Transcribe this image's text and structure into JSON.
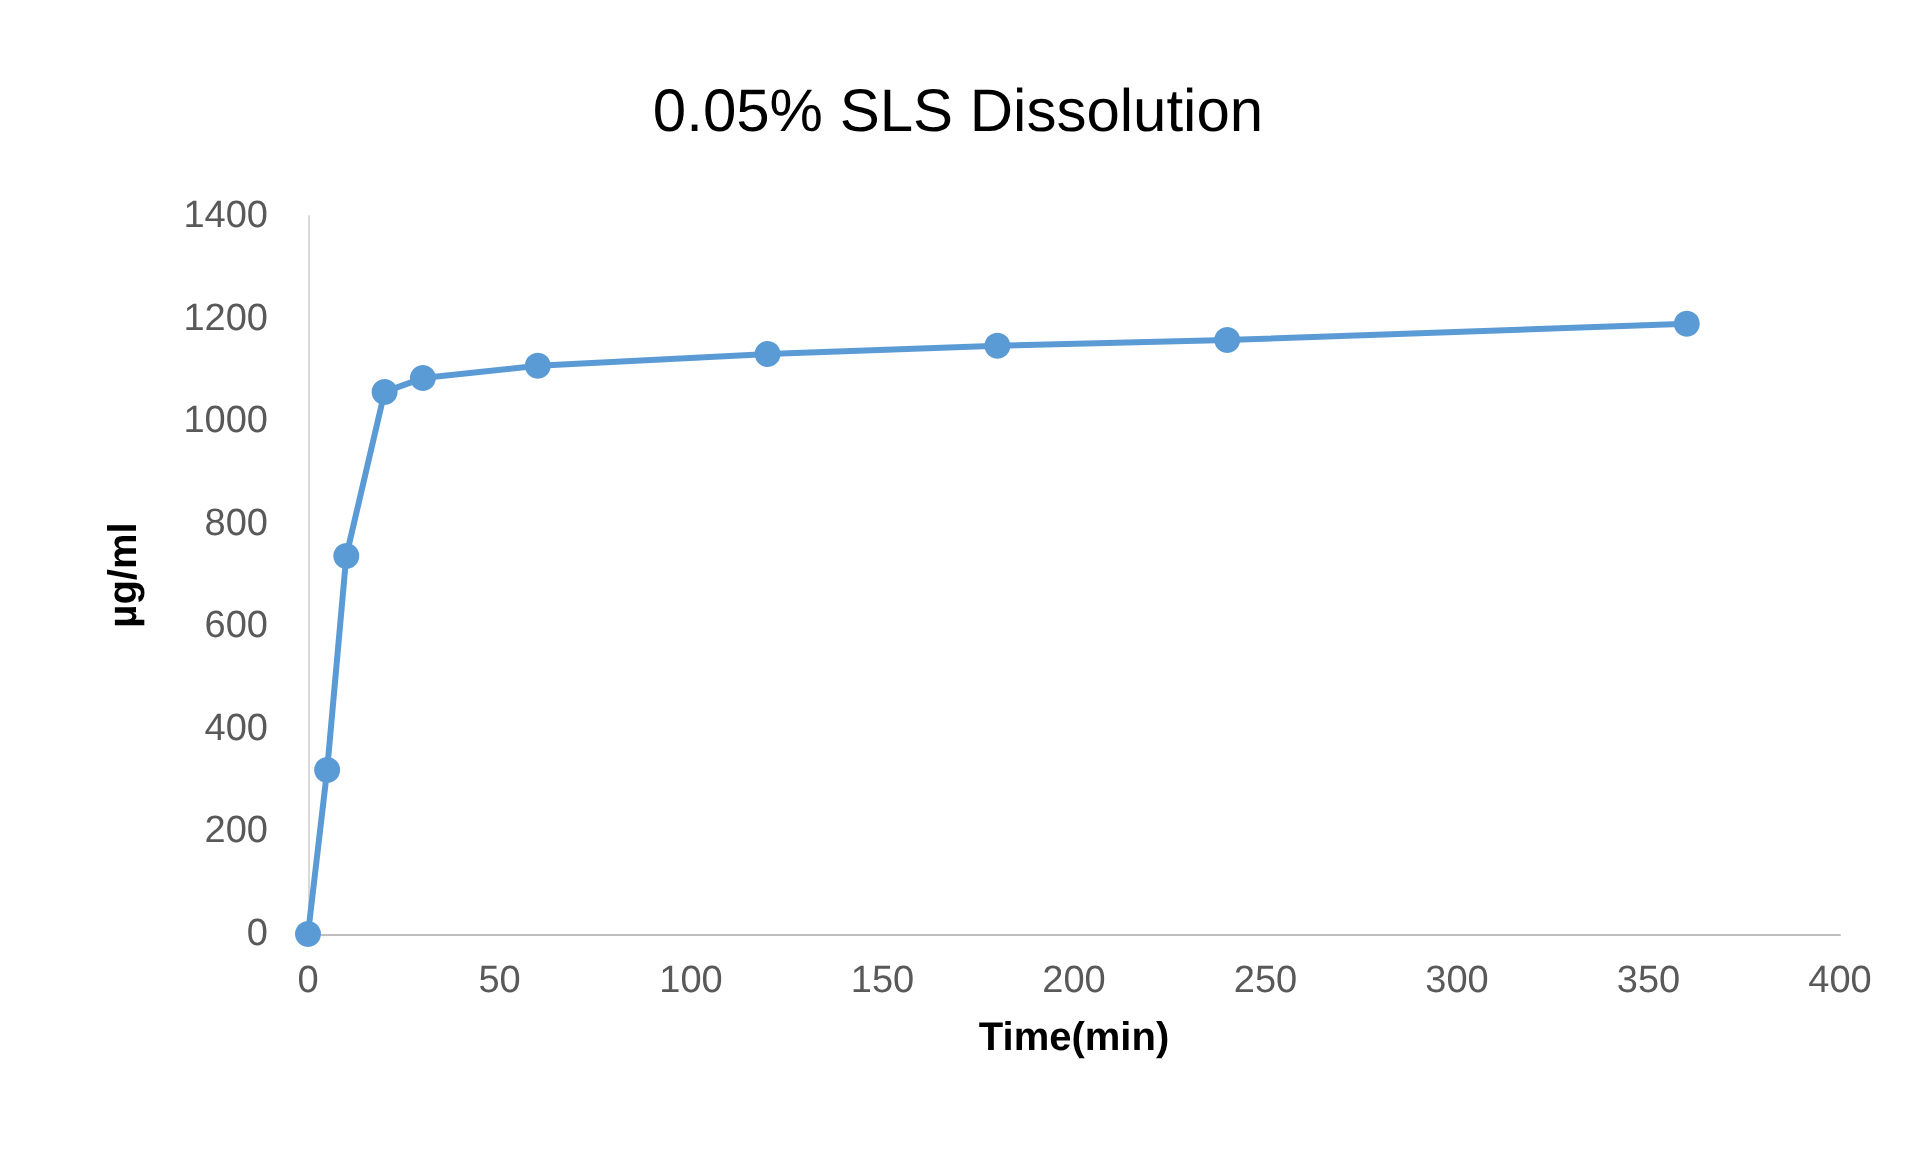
{
  "chart_data": {
    "type": "line",
    "title": "0.05% SLS Dissolution",
    "xlabel": "Time(min)",
    "ylabel": "µg/ml",
    "x": [
      0,
      5,
      10,
      20,
      30,
      60,
      120,
      180,
      240,
      360
    ],
    "series": [
      {
        "color": "#5b9bd5",
        "values": [
          0,
          320,
          737,
          1057,
          1084,
          1108,
          1131,
          1147,
          1158,
          1190
        ]
      }
    ],
    "xlim": [
      0,
      400
    ],
    "xticks": [
      0,
      50,
      100,
      150,
      200,
      250,
      300,
      350,
      400
    ],
    "ylim": [
      0,
      1400
    ],
    "yticks": [
      0,
      200,
      400,
      600,
      800,
      1000,
      1200,
      1400
    ],
    "grid": false,
    "marker": "circle",
    "line_style": "solid"
  }
}
